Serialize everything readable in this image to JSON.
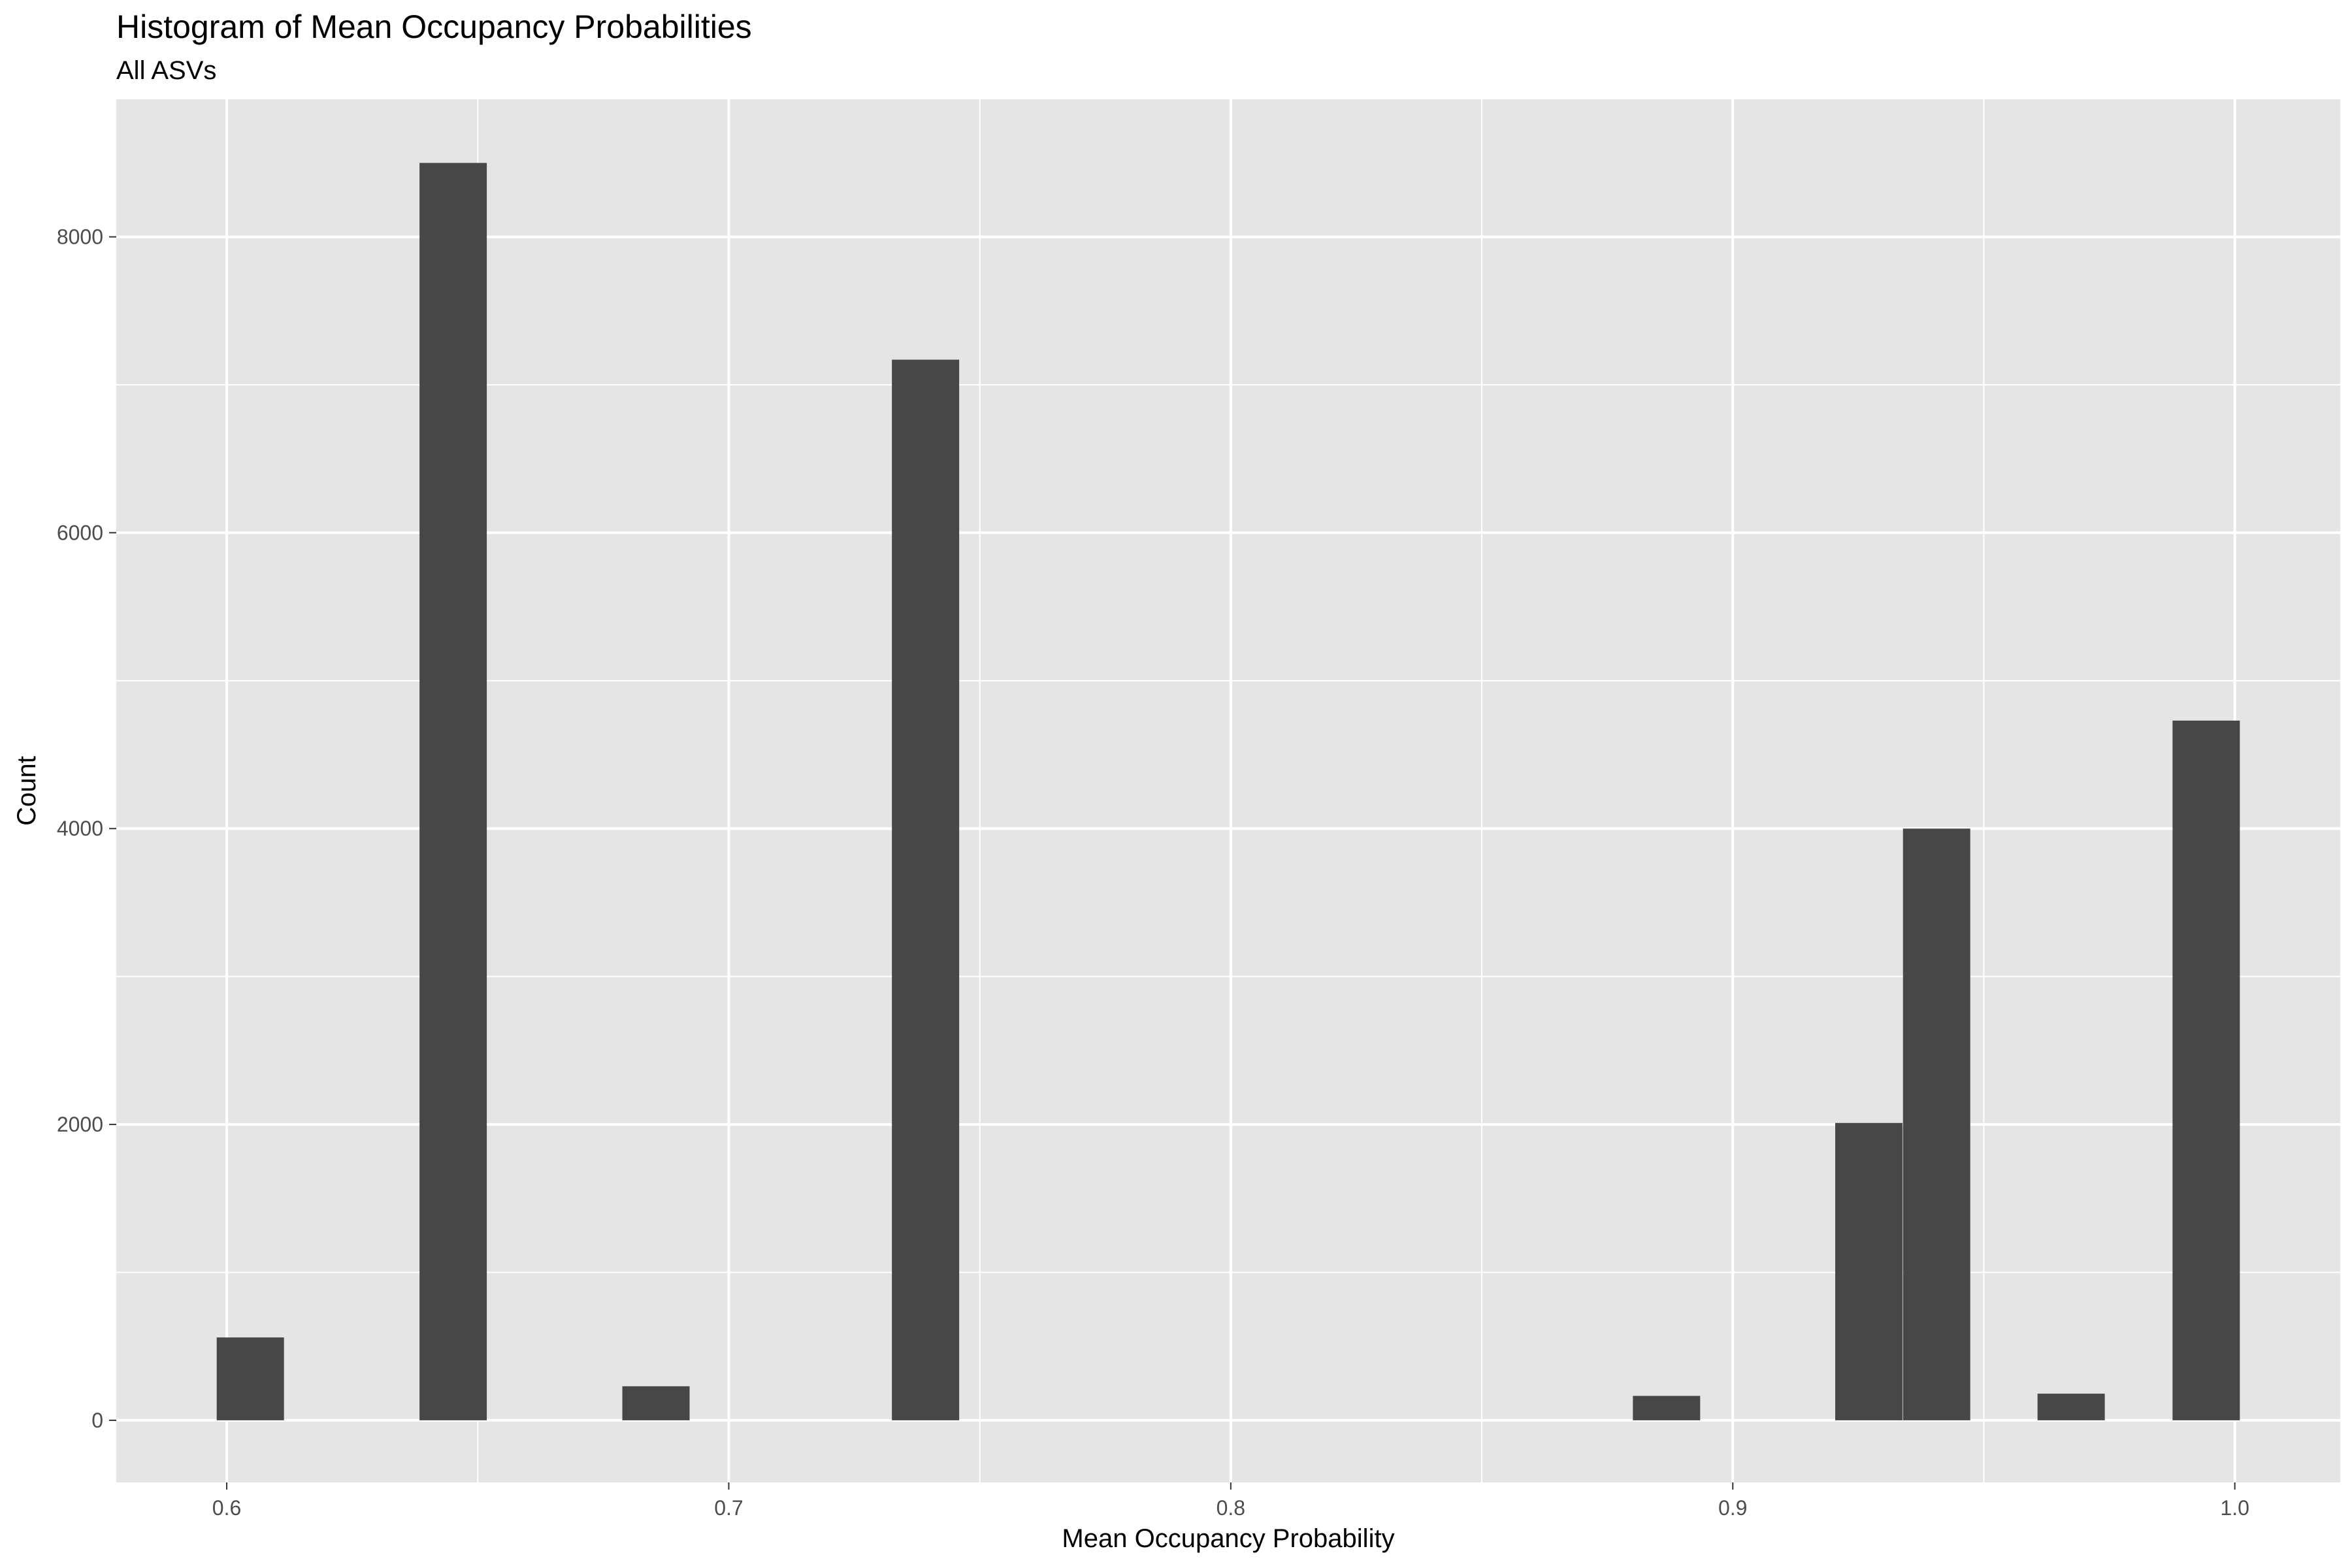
{
  "chart_data": {
    "type": "bar",
    "title": "Histogram of Mean Occupancy Probabilities",
    "subtitle": "All ASVs",
    "xlabel": "Mean Occupancy Probability",
    "ylabel": "Count",
    "xlim": [
      0.578,
      1.021
    ],
    "ylim": [
      -420,
      8930
    ],
    "bin_width": 0.0134,
    "x_ticks": [
      0.6,
      0.7,
      0.8,
      0.9,
      1.0
    ],
    "x_tick_labels": [
      "0.6",
      "0.7",
      "0.8",
      "0.9",
      "1.0"
    ],
    "y_ticks": [
      0,
      2000,
      4000,
      6000,
      8000
    ],
    "y_tick_labels": [
      "0",
      "2000",
      "4000",
      "6000",
      "8000"
    ],
    "bins": [
      {
        "center": 0.6047,
        "count": 560
      },
      {
        "center": 0.6451,
        "count": 8500
      },
      {
        "center": 0.6855,
        "count": 230
      },
      {
        "center": 0.7392,
        "count": 7170
      },
      {
        "center": 0.8868,
        "count": 165
      },
      {
        "center": 0.9271,
        "count": 2010
      },
      {
        "center": 0.9406,
        "count": 4000
      },
      {
        "center": 0.9674,
        "count": 180
      },
      {
        "center": 0.9943,
        "count": 4730
      }
    ],
    "colors": {
      "bar": "#474747",
      "panel": "#e5e5e5",
      "grid": "#ffffff"
    }
  }
}
